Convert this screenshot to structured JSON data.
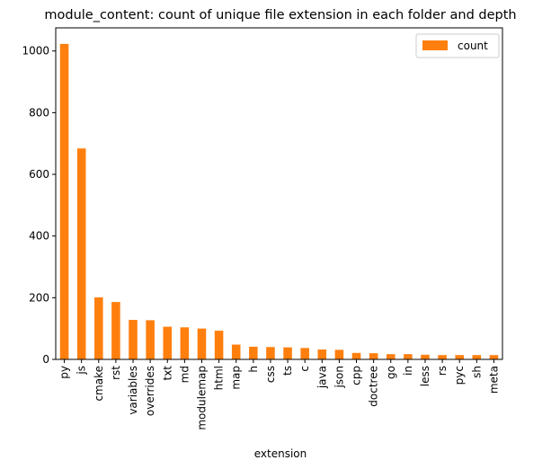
{
  "chart_data": {
    "type": "bar",
    "title": "module_content: count of unique file extension in each folder and depth",
    "xlabel": "extension",
    "ylabel": "",
    "categories": [
      "py",
      "js",
      "cmake",
      "rst",
      "variables",
      "overrides",
      "txt",
      "md",
      "modulemap",
      "html",
      "map",
      "h",
      "css",
      "ts",
      "c",
      "java",
      "json",
      "cpp",
      "doctree",
      "go",
      "in",
      "less",
      "rs",
      "pyc",
      "sh",
      "meta"
    ],
    "series": [
      {
        "name": "count",
        "color": "#ff7f0e",
        "values": [
          1023,
          684,
          201,
          186,
          128,
          127,
          106,
          104,
          100,
          93,
          48,
          41,
          40,
          39,
          37,
          32,
          31,
          21,
          20,
          17,
          17,
          15,
          14,
          14,
          14,
          14
        ]
      }
    ],
    "ylim": [
      0,
      1075
    ],
    "yticks": [
      0,
      200,
      400,
      600,
      800,
      1000
    ],
    "grid": false,
    "legend": "top-right"
  }
}
